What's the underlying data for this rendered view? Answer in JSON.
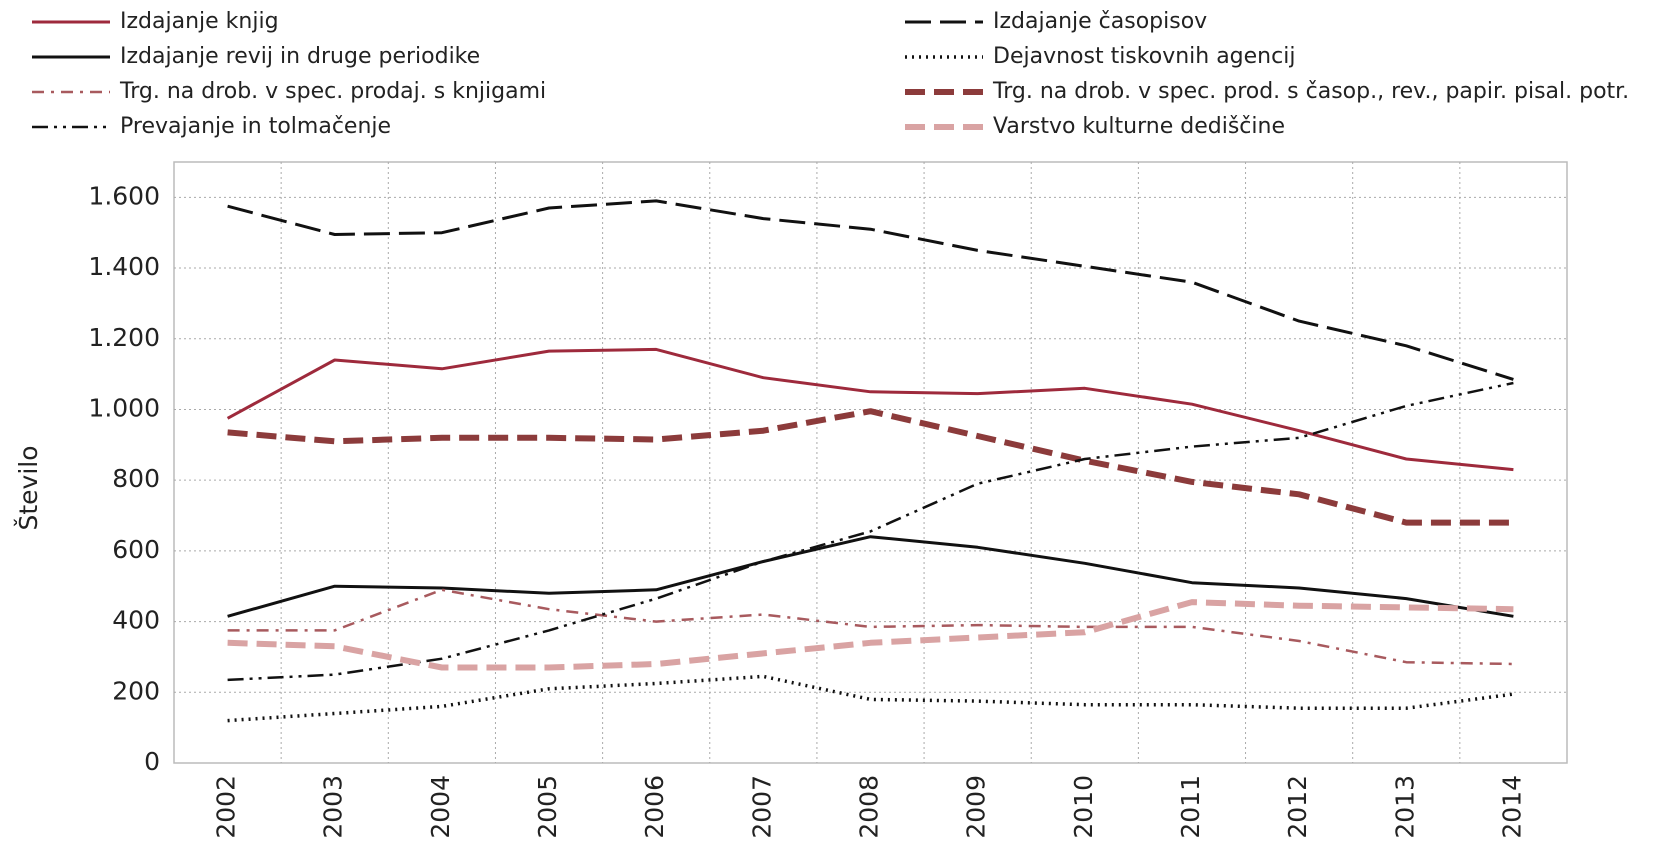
{
  "chart_data": {
    "type": "line",
    "y_label": "Število",
    "categories": [
      "2002",
      "2003",
      "2004",
      "2005",
      "2006",
      "2007",
      "2008",
      "2009",
      "2010",
      "2011",
      "2012",
      "2013",
      "2014"
    ],
    "ylim": [
      0,
      1700
    ],
    "yticks": [
      0,
      200,
      400,
      600,
      800,
      {
        "value": 1000,
        "label": "1.000"
      },
      {
        "value": 1200,
        "label": "1.200"
      },
      {
        "value": 1400,
        "label": "1.400"
      },
      {
        "value": 1600,
        "label": "1.600"
      }
    ],
    "grid": true,
    "series": [
      {
        "name": "Izdajanje knjig",
        "color": "#9e2a3c",
        "dash": "solid",
        "width": 3,
        "values": [
          975,
          1140,
          1115,
          1165,
          1170,
          1090,
          1050,
          1045,
          1060,
          1015,
          940,
          860,
          830
        ]
      },
      {
        "name": "Izdajanje časopisov",
        "color": "#111111",
        "dash": "long-dash",
        "width": 3,
        "values": [
          1575,
          1495,
          1500,
          1570,
          1590,
          1540,
          1510,
          1450,
          1405,
          1360,
          1250,
          1180,
          1085
        ]
      },
      {
        "name": "Izdajanje revij in druge periodike",
        "color": "#111111",
        "dash": "solid",
        "width": 3,
        "values": [
          415,
          500,
          495,
          480,
          490,
          570,
          640,
          610,
          565,
          510,
          495,
          465,
          415
        ]
      },
      {
        "name": "Dejavnost tiskovnih agencij",
        "color": "#111111",
        "dash": "dotted",
        "width": 3.5,
        "values": [
          120,
          140,
          160,
          210,
          225,
          245,
          180,
          175,
          165,
          165,
          155,
          155,
          195
        ]
      },
      {
        "name": "Trg. na drob. v spec. prodaj. s knjigami",
        "color": "#a85a5e",
        "dash": "dash-dot",
        "width": 2.5,
        "values": [
          375,
          375,
          490,
          435,
          400,
          420,
          385,
          390,
          385,
          385,
          345,
          285,
          280
        ]
      },
      {
        "name": "Trg. na drob. v spec. prod. s časop., rev., papir. pisal. potr.",
        "color": "#8c3b3b",
        "dash": "thick-dash",
        "width": 6,
        "values": [
          935,
          910,
          920,
          920,
          915,
          940,
          995,
          925,
          855,
          795,
          760,
          680,
          680
        ]
      },
      {
        "name": "Prevajanje in tolmačenje",
        "color": "#111111",
        "dash": "dash-dot-dot",
        "width": 2.5,
        "values": [
          235,
          250,
          295,
          375,
          465,
          570,
          655,
          790,
          860,
          895,
          920,
          1010,
          1075
        ]
      },
      {
        "name": "Varstvo kulturne dediščine",
        "color": "#d9a3a3",
        "dash": "thick-dash",
        "width": 6,
        "values": [
          340,
          330,
          270,
          270,
          280,
          310,
          340,
          355,
          370,
          455,
          445,
          440,
          435
        ]
      }
    ]
  }
}
